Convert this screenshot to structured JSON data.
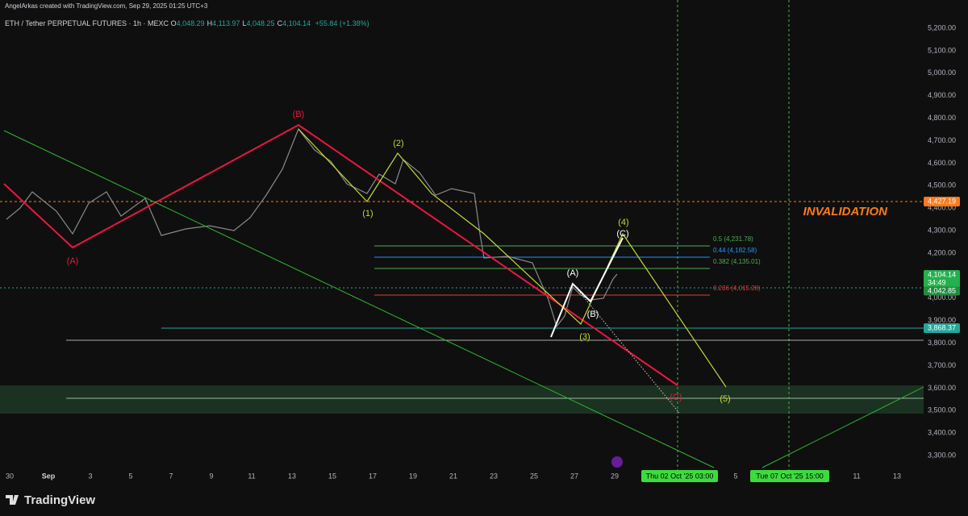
{
  "header": {
    "credit": "AngelArkas created with TradingView.com, Sep 29, 2025 01:25 UTC+3",
    "symbol": "ETH / Tether PERPETUAL FUTURES · 1h · MEXC",
    "ohlc": [
      {
        "key": "O",
        "value": "4,048.29"
      },
      {
        "key": "H",
        "value": "4,113.97"
      },
      {
        "key": "L",
        "value": "4,048.25"
      },
      {
        "key": "C",
        "value": "4,104.14"
      }
    ],
    "change": "+55.84 (+1.38%)"
  },
  "price_axis": [
    "5,200.00",
    "5,100.00",
    "5,000.00",
    "4,900.00",
    "4,800.00",
    "4,700.00",
    "4,600.00",
    "4,500.00",
    "4,400.00",
    "4,300.00",
    "4,200.00",
    "4,100.00",
    "4,000.00",
    "3,900.00",
    "3,800.00",
    "3,700.00",
    "3,600.00",
    "3,500.00",
    "3,400.00",
    "3,300.00"
  ],
  "price_tags": {
    "invalidation": "4,427.19",
    "last": "4,104.14",
    "countdown": "34:49",
    "previous": "4,042.85",
    "low": "3,868.37"
  },
  "time_axis": [
    "30",
    "Sep",
    "3",
    "5",
    "7",
    "9",
    "11",
    "13",
    "15",
    "17",
    "19",
    "21",
    "23",
    "25",
    "27",
    "29",
    "5",
    "11",
    "13"
  ],
  "time_tags": [
    "Thu 02 Oct '25   03:00",
    "Tue 07 Oct '25   15:00"
  ],
  "waves": {
    "A_red": "(A)",
    "B_red": "(B)",
    "C_red": "(C)",
    "w1": "(1)",
    "w2": "(2)",
    "w3": "(3)",
    "w4": "(4)",
    "w5": "(5)",
    "A_white": "(A)",
    "B_white": "(B)",
    "C_white": "(C)"
  },
  "fib": [
    "0.5 (4,231.78)",
    "0.44 (4,182.58)",
    "0.382 (4,135.01)",
    "0.236 (4,015.28)"
  ],
  "invalidation": "INVALIDATION",
  "footer": {
    "logo": "TradingView"
  }
}
